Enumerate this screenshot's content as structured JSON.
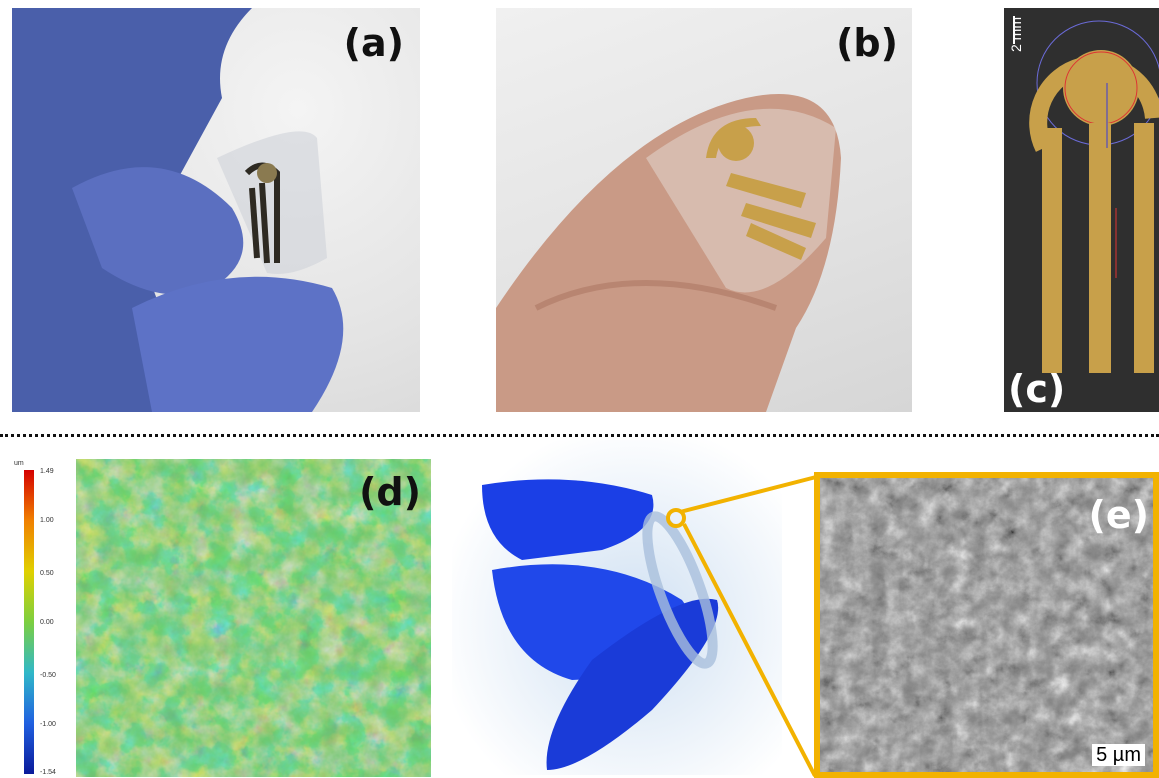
{
  "panels": {
    "a": {
      "label": "(a)"
    },
    "b": {
      "label": "(b)"
    },
    "c": {
      "label": "(c)",
      "scale_label": "2 mm"
    },
    "d": {
      "label": "(d)",
      "colorbar_unit": "um",
      "colorbar_ticks": [
        "1.49",
        "1.00",
        "0.50",
        "0.00",
        "-0.50",
        "-1.00",
        "-1.54"
      ]
    },
    "e": {
      "label": "(e)",
      "scale_label": "5 µm"
    }
  },
  "colors": {
    "highlight_frame": "#f2b200",
    "electrode_gold": "#c8a04a",
    "glove_blue": "#2c4fd6"
  }
}
